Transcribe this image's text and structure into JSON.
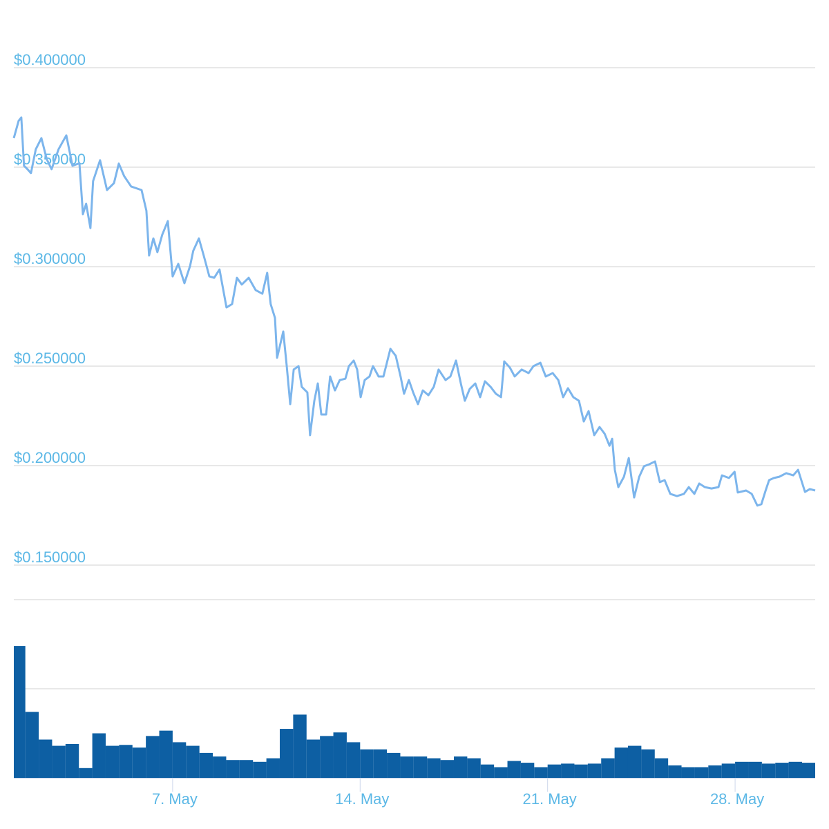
{
  "chart_data": [
    {
      "type": "line",
      "color": "#7cb5ec",
      "x": [
        1.07,
        1.25,
        1.35,
        1.45,
        1.58,
        1.71,
        1.89,
        2.1,
        2.3,
        2.48,
        2.74,
        3.03,
        3.26,
        3.52,
        3.65,
        3.77,
        3.93,
        4.03,
        4.29,
        4.55,
        4.81,
        4.99,
        5.19,
        5.45,
        5.84,
        6.02,
        6.12,
        6.28,
        6.43,
        6.61,
        6.82,
        7.0,
        7.21,
        7.44,
        7.65,
        7.77,
        7.98,
        8.16,
        8.37,
        8.55,
        8.75,
        9.01,
        9.22,
        9.4,
        9.58,
        9.84,
        10.1,
        10.35,
        10.53,
        10.66,
        10.82,
        10.9,
        11.13,
        11.26,
        11.39,
        11.52,
        11.7,
        11.82,
        12.03,
        12.13,
        12.29,
        12.42,
        12.55,
        12.73,
        12.88,
        13.06,
        13.24,
        13.45,
        13.58,
        13.76,
        13.89,
        14.02,
        14.17,
        14.35,
        14.48,
        14.69,
        14.87,
        15.13,
        15.33,
        15.51,
        15.64,
        15.82,
        15.98,
        16.16,
        16.34,
        16.55,
        16.75,
        16.93,
        17.19,
        17.37,
        17.58,
        17.76,
        17.91,
        18.09,
        18.3,
        18.48,
        18.66,
        18.87,
        19.07,
        19.26,
        19.38,
        19.59,
        19.77,
        20.03,
        20.29,
        20.47,
        20.73,
        20.93,
        21.19,
        21.4,
        21.58,
        21.76,
        21.96,
        22.17,
        22.35,
        22.53,
        22.74,
        22.94,
        23.13,
        23.31,
        23.41,
        23.51,
        23.64,
        23.85,
        24.03,
        24.23,
        24.42,
        24.6,
        24.8,
        25.01,
        25.19,
        25.37,
        25.58,
        25.83,
        26.09,
        26.27,
        26.48,
        26.66,
        26.87,
        27.12,
        27.38,
        27.51,
        27.77,
        27.98,
        28.1,
        28.41,
        28.62,
        28.83,
        28.98,
        29.14,
        29.27,
        29.45,
        29.65,
        29.91,
        30.17,
        30.35,
        30.61,
        30.79,
        30.99
      ],
      "values": [
        0.3646,
        0.3733,
        0.375,
        0.3507,
        0.349,
        0.347,
        0.359,
        0.3646,
        0.354,
        0.349,
        0.359,
        0.366,
        0.3507,
        0.352,
        0.3264,
        0.3316,
        0.3194,
        0.343,
        0.3535,
        0.3385,
        0.342,
        0.3518,
        0.3455,
        0.3403,
        0.3385,
        0.3281,
        0.3056,
        0.3142,
        0.3073,
        0.316,
        0.3229,
        0.2951,
        0.3014,
        0.2917,
        0.3003,
        0.308,
        0.3142,
        0.3056,
        0.2951,
        0.2944,
        0.2986,
        0.2795,
        0.2812,
        0.2944,
        0.291,
        0.2944,
        0.2882,
        0.2864,
        0.2969,
        0.2812,
        0.2743,
        0.2542,
        0.2674,
        0.25,
        0.2309,
        0.2483,
        0.25,
        0.2396,
        0.2368,
        0.2153,
        0.2326,
        0.2413,
        0.2257,
        0.2257,
        0.2448,
        0.2378,
        0.243,
        0.2437,
        0.25,
        0.2528,
        0.2483,
        0.2344,
        0.243,
        0.2448,
        0.25,
        0.2448,
        0.2448,
        0.2587,
        0.2552,
        0.2448,
        0.2361,
        0.243,
        0.2368,
        0.2309,
        0.2378,
        0.2354,
        0.2396,
        0.2483,
        0.243,
        0.2448,
        0.2528,
        0.2413,
        0.2326,
        0.2385,
        0.2413,
        0.2344,
        0.2424,
        0.2396,
        0.2361,
        0.2344,
        0.2524,
        0.2493,
        0.2448,
        0.2483,
        0.2465,
        0.25,
        0.2517,
        0.2448,
        0.2465,
        0.243,
        0.2344,
        0.2389,
        0.2344,
        0.2326,
        0.2222,
        0.2274,
        0.2153,
        0.2194,
        0.216,
        0.21,
        0.2135,
        0.1979,
        0.1892,
        0.1944,
        0.2038,
        0.184,
        0.1944,
        0.1997,
        0.2007,
        0.2021,
        0.1917,
        0.1927,
        0.1858,
        0.1847,
        0.1858,
        0.1892,
        0.1858,
        0.191,
        0.1892,
        0.1885,
        0.1892,
        0.1951,
        0.1938,
        0.1969,
        0.1865,
        0.1875,
        0.1858,
        0.1799,
        0.1806,
        0.1875,
        0.1927,
        0.1938,
        0.1944,
        0.1962,
        0.1951,
        0.1979,
        0.1868,
        0.1882,
        0.1875
      ],
      "xlim": [
        1.07,
        30.99
      ],
      "ylim": [
        0.15,
        0.4
      ],
      "yticks": [
        {
          "value": 0.15,
          "label": "$0.150000"
        },
        {
          "value": 0.2,
          "label": "$0.200000"
        },
        {
          "value": 0.25,
          "label": "$0.250000"
        },
        {
          "value": 0.3,
          "label": "$0.300000"
        },
        {
          "value": 0.35,
          "label": "$0.350000"
        },
        {
          "value": 0.4,
          "label": "$0.400000"
        }
      ],
      "grid": true
    },
    {
      "type": "bar",
      "color": "#0d5fa3",
      "x": [
        1.25,
        1.75,
        2.25,
        2.75,
        3.25,
        3.75,
        4.25,
        4.75,
        5.25,
        5.75,
        6.25,
        6.75,
        7.25,
        7.75,
        8.25,
        8.75,
        9.25,
        9.75,
        10.25,
        10.75,
        11.25,
        11.75,
        12.25,
        12.75,
        13.25,
        13.75,
        14.25,
        14.75,
        15.25,
        15.75,
        16.25,
        16.75,
        17.25,
        17.75,
        18.25,
        18.75,
        19.25,
        19.75,
        20.25,
        20.75,
        21.25,
        21.75,
        22.25,
        22.75,
        23.25,
        23.75,
        24.25,
        24.75,
        25.25,
        25.75,
        26.25,
        26.75,
        27.25,
        27.75,
        28.25,
        28.75,
        29.25,
        29.75,
        30.25,
        30.75
      ],
      "values": [
        1.48,
        0.74,
        0.43,
        0.36,
        0.38,
        0.11,
        0.5,
        0.36,
        0.37,
        0.34,
        0.47,
        0.53,
        0.4,
        0.36,
        0.28,
        0.24,
        0.2,
        0.2,
        0.18,
        0.22,
        0.55,
        0.71,
        0.43,
        0.47,
        0.51,
        0.4,
        0.32,
        0.32,
        0.28,
        0.24,
        0.24,
        0.22,
        0.2,
        0.24,
        0.22,
        0.15,
        0.12,
        0.19,
        0.17,
        0.12,
        0.15,
        0.16,
        0.15,
        0.16,
        0.22,
        0.34,
        0.36,
        0.32,
        0.22,
        0.14,
        0.12,
        0.12,
        0.14,
        0.16,
        0.18,
        0.18,
        0.16,
        0.17,
        0.18,
        0.17
      ],
      "bar_width": 0.5,
      "xlim": [
        1.07,
        30.99
      ],
      "ylim": [
        0,
        2
      ],
      "yticks": [
        1,
        2
      ],
      "grid": true,
      "xticks": [
        {
          "value": 7,
          "label": "7. May"
        },
        {
          "value": 14,
          "label": "14. May"
        },
        {
          "value": 21,
          "label": "21. May"
        },
        {
          "value": 28,
          "label": "28. May"
        }
      ]
    }
  ]
}
